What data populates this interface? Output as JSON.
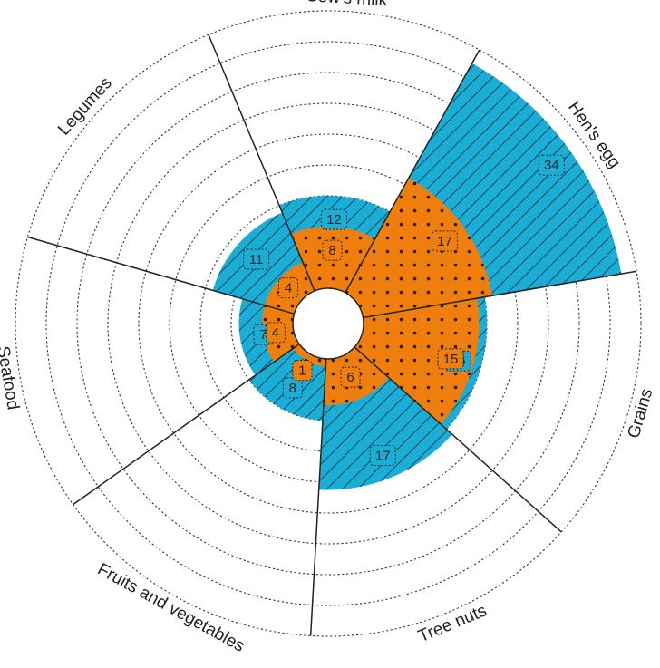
{
  "chart_data": {
    "type": "polar-area",
    "title": "",
    "categories": [
      "Cow's milk",
      "Hen's egg",
      "Grains",
      "Tree nuts",
      "Fruits and vegetables",
      "Seafood",
      "Legumes"
    ],
    "series": [
      {
        "values": [
          12,
          34,
          16,
          17,
          8,
          7,
          11
        ],
        "color": "#1aaed6",
        "pattern": "diagonal-hatch"
      },
      {
        "values": [
          8,
          17,
          15,
          6,
          1,
          4,
          4
        ],
        "color": "#f07e0c",
        "pattern": "dots"
      }
    ],
    "grid": true,
    "legend": "none"
  }
}
